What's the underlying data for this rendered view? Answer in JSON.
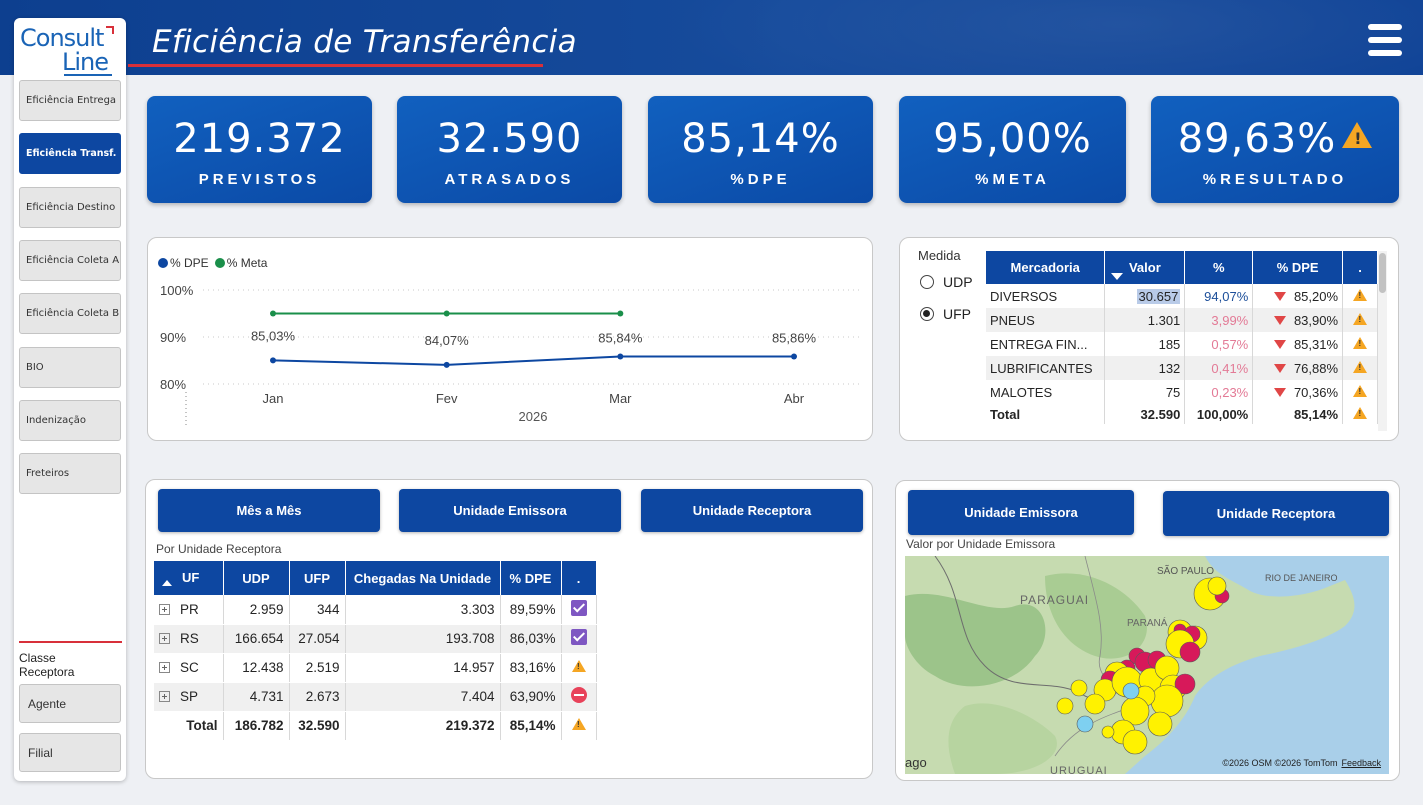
{
  "header": {
    "title": "Eficiência de Transferência"
  },
  "logo": {
    "line1": "Consult",
    "line2": "Line"
  },
  "sidebar": {
    "items": [
      {
        "label": "Eficiência Entrega",
        "active": false
      },
      {
        "label": "Eficiência Transf.",
        "active": true
      },
      {
        "label": "Eficiência Destino",
        "active": false
      },
      {
        "label": "Eficiência Coleta A",
        "active": false
      },
      {
        "label": "Eficiência Coleta B",
        "active": false
      },
      {
        "label": "BIO",
        "active": false
      },
      {
        "label": "Indenização",
        "active": false
      },
      {
        "label": "Freteiros",
        "active": false
      }
    ],
    "classe_label": "Classe Receptora",
    "classe_options": [
      "Agente",
      "Filial"
    ]
  },
  "kpis": [
    {
      "value": "219.372",
      "label": "PREVISTOS"
    },
    {
      "value": "32.590",
      "label": "ATRASADOS"
    },
    {
      "value": "85,14%",
      "label": "%DPE"
    },
    {
      "value": "95,00%",
      "label": "%META"
    },
    {
      "value": "89,63%",
      "label": "%RESULTADO",
      "icon": "warning-icon"
    }
  ],
  "chart_data": {
    "type": "line",
    "categories": [
      "Jan",
      "Fev",
      "Mar",
      "Abr"
    ],
    "xlabel": "2026",
    "series": [
      {
        "name": "% DPE",
        "color": "#0d47a1",
        "values": [
          85.03,
          84.07,
          85.84,
          85.86
        ],
        "labels": [
          "85,03%",
          "84,07%",
          "85,84%",
          "85,86%"
        ]
      },
      {
        "name": "% Meta",
        "color": "#1a8f4a",
        "values": [
          95,
          95,
          95,
          null
        ]
      }
    ],
    "yticks": [
      "100%",
      "90%",
      "80%"
    ],
    "ylim": [
      80,
      100
    ]
  },
  "medida": {
    "title": "Medida",
    "options": [
      {
        "label": "UDP",
        "selected": false
      },
      {
        "label": "UFP",
        "selected": true
      }
    ]
  },
  "mercadoria_table": {
    "headers": [
      "Mercadoria",
      "Valor",
      "%",
      "% DPE",
      "."
    ],
    "rows": [
      [
        "DIVERSOS",
        "30.657",
        "94,07%",
        "85,20%"
      ],
      [
        "PNEUS",
        "1.301",
        "3,99%",
        "83,90%"
      ],
      [
        "ENTREGA FIN...",
        "185",
        "0,57%",
        "85,31%"
      ],
      [
        "LUBRIFICANTES",
        "132",
        "0,41%",
        "76,88%"
      ],
      [
        "MALOTES",
        "75",
        "0,23%",
        "70,36%"
      ]
    ],
    "total": [
      "Total",
      "32.590",
      "100,00%",
      "85,14%"
    ]
  },
  "tabs_left": [
    "Mês a Mês",
    "Unidade Emissora",
    "Unidade Receptora"
  ],
  "uf_table": {
    "subtitle": "Por Unidade Receptora",
    "headers": [
      "UF",
      "UDP",
      "UFP",
      "Chegadas Na Unidade",
      "% DPE",
      "."
    ],
    "rows": [
      [
        "PR",
        "2.959",
        "344",
        "3.303",
        "89,59%",
        "check"
      ],
      [
        "RS",
        "166.654",
        "27.054",
        "193.708",
        "86,03%",
        "check"
      ],
      [
        "SC",
        "12.438",
        "2.519",
        "14.957",
        "83,16%",
        "warning"
      ],
      [
        "SP",
        "4.731",
        "2.673",
        "7.404",
        "63,90%",
        "stop"
      ]
    ],
    "total": [
      "Total",
      "186.782",
      "32.590",
      "219.372",
      "85,14%",
      "warning"
    ]
  },
  "map_panel": {
    "tabs": [
      "Unidade Emissora",
      "Unidade Receptora"
    ],
    "subtitle": "Valor por Unidade Emissora",
    "labels": [
      "SÃO PAULO",
      "RIO DE JANEIRO",
      "PARAGUAI",
      "PARANÁ",
      "URUGUAI",
      "ago"
    ],
    "credit": "©2026 OSM  ©2026 TomTom",
    "feedback": "Feedback"
  },
  "colors": {
    "primary": "#0d47a1",
    "warning": "#f5a623",
    "down": "#e04646",
    "meta": "#1a8f4a"
  }
}
